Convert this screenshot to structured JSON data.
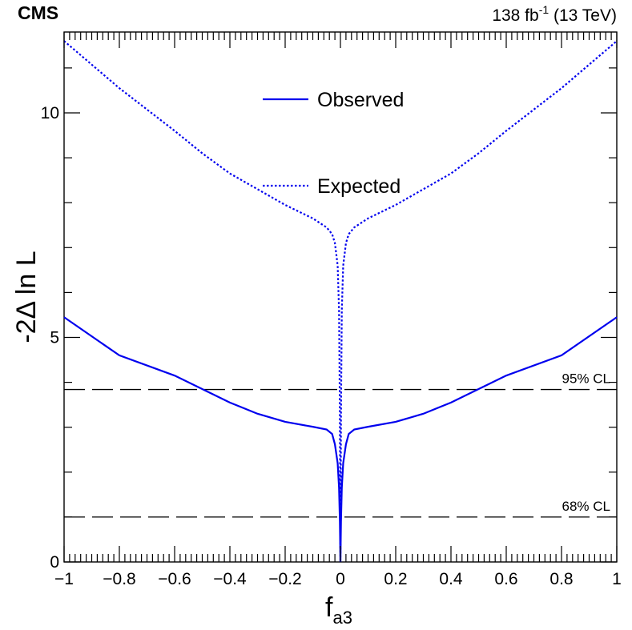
{
  "header": {
    "experiment": "CMS",
    "lumi_value": "138 fb",
    "lumi_exponent": "-1",
    "energy": "(13 TeV)"
  },
  "chart_data": {
    "type": "line",
    "xlabel_main": "f",
    "xlabel_sub": "a3",
    "ylabel": "-2Δ ln L",
    "xlim": [
      -1,
      1
    ],
    "ylim": [
      0,
      11.8
    ],
    "x_ticks": [
      -1,
      -0.8,
      -0.6,
      -0.4,
      -0.2,
      0,
      0.2,
      0.4,
      0.6,
      0.8,
      1
    ],
    "x_tick_labels": [
      "−1",
      "−0.8",
      "−0.6",
      "−0.4",
      "−0.2",
      "0",
      "0.2",
      "0.4",
      "0.6",
      "0.8",
      "1"
    ],
    "y_ticks": [
      0,
      5,
      10
    ],
    "y_tick_labels": [
      "0",
      "5",
      "10"
    ],
    "colors": {
      "curves": "#0000ee",
      "reference": "#000000"
    },
    "series": [
      {
        "name": "Observed",
        "style": "solid",
        "x": [
          -1,
          -0.8,
          -0.6,
          -0.5,
          -0.4,
          -0.3,
          -0.2,
          -0.1,
          -0.05,
          -0.03,
          -0.02,
          -0.01,
          -0.005,
          -0.002,
          0,
          0.002,
          0.005,
          0.01,
          0.02,
          0.03,
          0.05,
          0.1,
          0.2,
          0.3,
          0.4,
          0.5,
          0.6,
          0.8,
          1
        ],
        "y": [
          5.45,
          4.6,
          4.15,
          3.85,
          3.55,
          3.3,
          3.12,
          3.01,
          2.95,
          2.85,
          2.62,
          2.2,
          1.65,
          0.9,
          0,
          0.9,
          1.65,
          2.2,
          2.62,
          2.85,
          2.95,
          3.01,
          3.12,
          3.3,
          3.55,
          3.85,
          4.15,
          4.6,
          5.45
        ]
      },
      {
        "name": "Expected",
        "style": "dotted",
        "x": [
          -1,
          -0.8,
          -0.6,
          -0.5,
          -0.4,
          -0.3,
          -0.2,
          -0.1,
          -0.05,
          -0.03,
          -0.02,
          -0.01,
          -0.005,
          -0.002,
          0,
          0.002,
          0.005,
          0.01,
          0.02,
          0.03,
          0.05,
          0.1,
          0.2,
          0.3,
          0.4,
          0.5,
          0.6,
          0.8,
          1
        ],
        "y": [
          11.6,
          10.55,
          9.6,
          9.1,
          8.65,
          8.3,
          7.95,
          7.65,
          7.45,
          7.3,
          7.1,
          6.6,
          5.6,
          3.3,
          0,
          3.3,
          5.6,
          6.6,
          7.1,
          7.3,
          7.45,
          7.65,
          7.95,
          8.3,
          8.65,
          9.1,
          9.6,
          10.55,
          11.6
        ]
      }
    ],
    "reference_lines": [
      {
        "label": "95% CL",
        "y": 3.84
      },
      {
        "label": "68% CL",
        "y": 1.0
      }
    ]
  }
}
